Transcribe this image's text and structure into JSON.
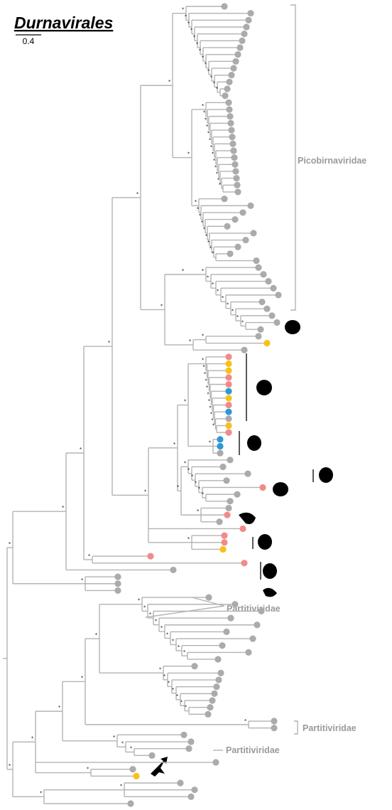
{
  "title": "Durnavirales",
  "scale_bar": "0.4",
  "clade_labels": [
    "Picobirnaviridae",
    "Partitiviridae",
    "Partitiviridae",
    "Partitiviridae"
  ],
  "support_marker": "*"
}
